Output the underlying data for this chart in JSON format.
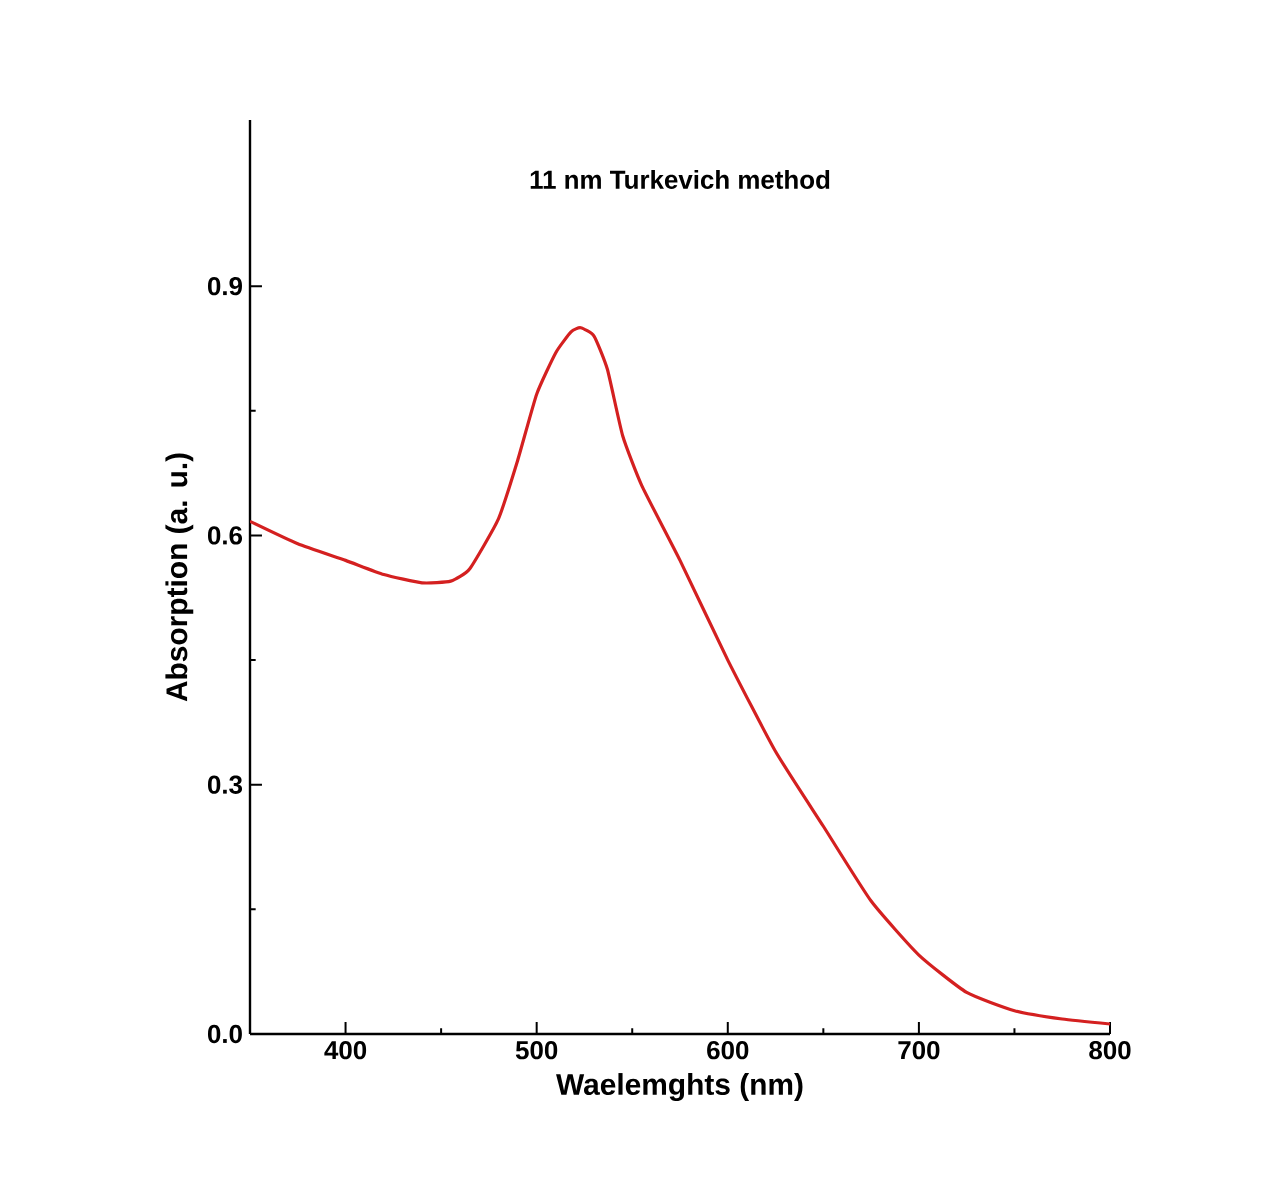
{
  "chart_data": {
    "type": "line",
    "title": "11 nm Turkevich method",
    "xlabel": "Waelemghts (nm)",
    "ylabel": "Absorption (a. u.)",
    "xlim": [
      350,
      800
    ],
    "ylim": [
      0,
      1.1
    ],
    "xticks": [
      400,
      500,
      600,
      700,
      800
    ],
    "yticks": [
      {
        "value": 0,
        "label": "0.0"
      },
      0.3,
      0.6,
      0.9
    ],
    "series": [
      {
        "color": "#d42020",
        "x": [
          350,
          375,
          400,
          420,
          440,
          455,
          465,
          480,
          490,
          500,
          510,
          518,
          523,
          530,
          537,
          545,
          555,
          575,
          600,
          625,
          650,
          675,
          700,
          725,
          750,
          775,
          800
        ],
        "values": [
          0.617,
          0.59,
          0.57,
          0.553,
          0.543,
          0.545,
          0.56,
          0.62,
          0.69,
          0.77,
          0.82,
          0.845,
          0.85,
          0.84,
          0.8,
          0.72,
          0.66,
          0.57,
          0.45,
          0.34,
          0.25,
          0.16,
          0.095,
          0.05,
          0.028,
          0.018,
          0.012
        ]
      }
    ]
  }
}
